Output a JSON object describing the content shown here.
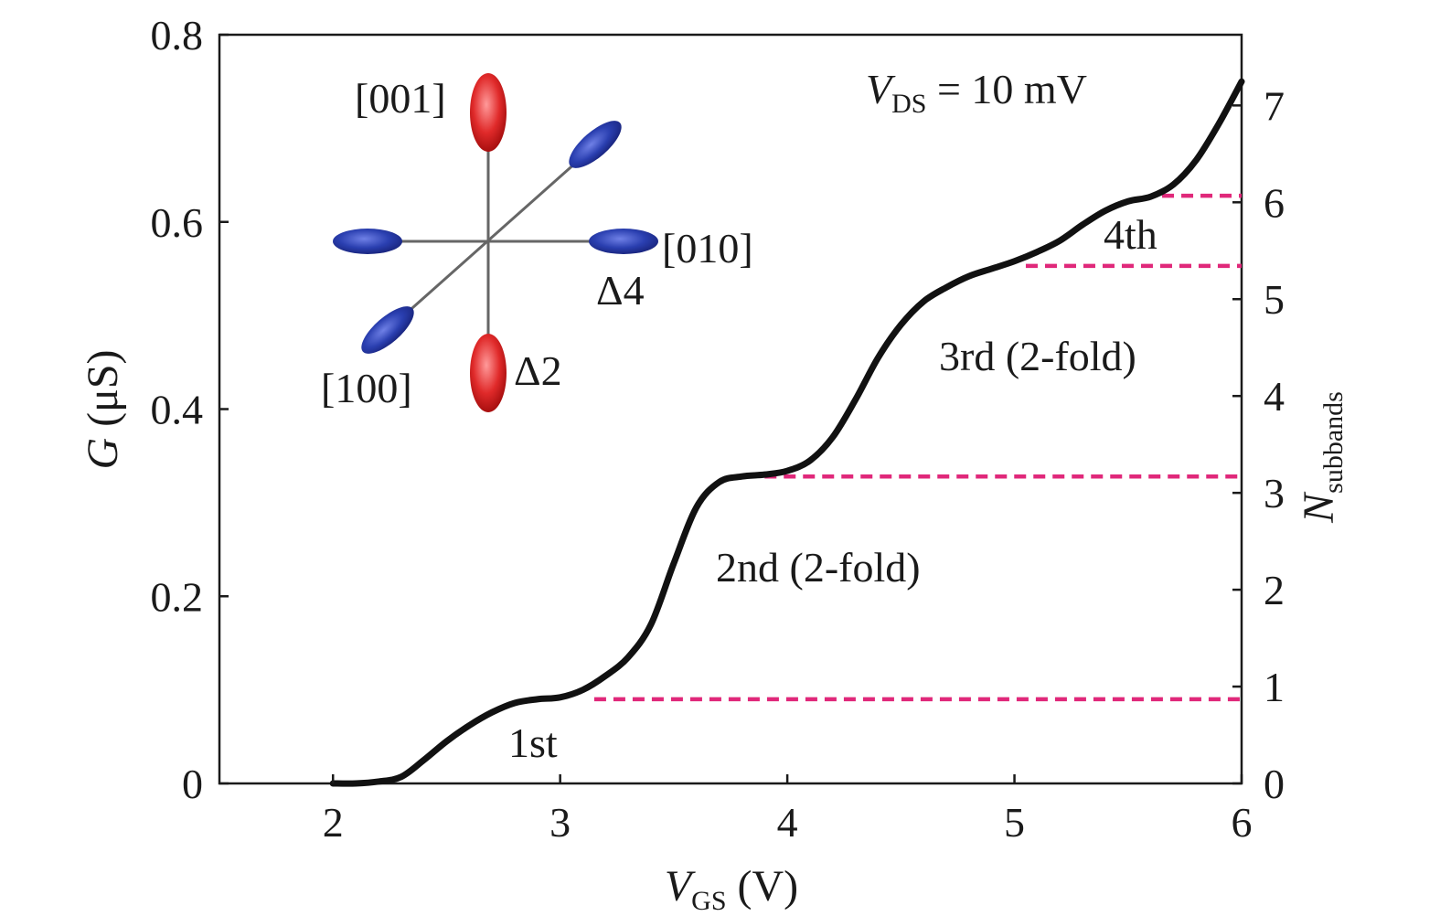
{
  "chart_data": {
    "type": "line",
    "xlim": [
      1.5,
      6
    ],
    "ylim": [
      0,
      0.8
    ],
    "y2lim": [
      0,
      7.73
    ],
    "xticks": [
      "2",
      "3",
      "4",
      "5",
      "6"
    ],
    "yticks": [
      "0",
      "0.2",
      "0.4",
      "0.6",
      "0.8"
    ],
    "y2ticks": [
      "0",
      "1",
      "2",
      "3",
      "4",
      "5",
      "6",
      "7"
    ],
    "xlabel": {
      "main": "V",
      "sub": "GS",
      "unit": " (V)"
    },
    "ylabel": {
      "main": "G",
      "unit": " (μS)"
    },
    "y2label": {
      "main": "N",
      "sub": "subbands"
    },
    "condition": {
      "main": "V",
      "sub": "DS",
      "rest": " = 10 mV"
    },
    "series": [
      {
        "x": [
          2.0,
          2.1,
          2.2,
          2.3,
          2.4,
          2.5,
          2.6,
          2.7,
          2.8,
          2.9,
          3.0,
          3.1,
          3.2,
          3.3,
          3.4,
          3.5,
          3.6,
          3.7,
          3.8,
          3.9,
          4.0,
          4.1,
          4.2,
          4.3,
          4.4,
          4.5,
          4.6,
          4.7,
          4.8,
          4.9,
          5.0,
          5.1,
          5.2,
          5.3,
          5.4,
          5.5,
          5.6,
          5.7,
          5.8,
          5.9,
          6.0
        ],
        "y": [
          0.0,
          0.0,
          0.002,
          0.007,
          0.025,
          0.045,
          0.062,
          0.076,
          0.086,
          0.09,
          0.092,
          0.1,
          0.115,
          0.135,
          0.17,
          0.235,
          0.295,
          0.322,
          0.328,
          0.33,
          0.334,
          0.345,
          0.37,
          0.41,
          0.455,
          0.49,
          0.515,
          0.53,
          0.542,
          0.55,
          0.558,
          0.568,
          0.58,
          0.597,
          0.612,
          0.622,
          0.627,
          0.64,
          0.666,
          0.705,
          0.75
        ],
        "color": "#111111"
      }
    ],
    "reference_lines": [
      {
        "from_x": 3.15,
        "y": 0.09,
        "color": "#e0287a"
      },
      {
        "from_x": 3.9,
        "y": 0.328,
        "color": "#e0287a"
      },
      {
        "from_x": 5.05,
        "y": 0.553,
        "color": "#e0287a"
      },
      {
        "from_x": 5.65,
        "y": 0.628,
        "color": "#e0287a"
      }
    ],
    "annotations": [
      "1st",
      "2nd (2-fold)",
      "3rd (2-fold)",
      "4th"
    ]
  },
  "inset": {
    "labels": {
      "dir001": "[001]",
      "dir010": "[010]",
      "dir100": "[100]",
      "delta4": "Δ4",
      "delta2": "Δ2"
    },
    "colors": {
      "red_valley": "#e02a2a",
      "blue_valley": "#2a3fb0",
      "axis": "#666666"
    }
  }
}
